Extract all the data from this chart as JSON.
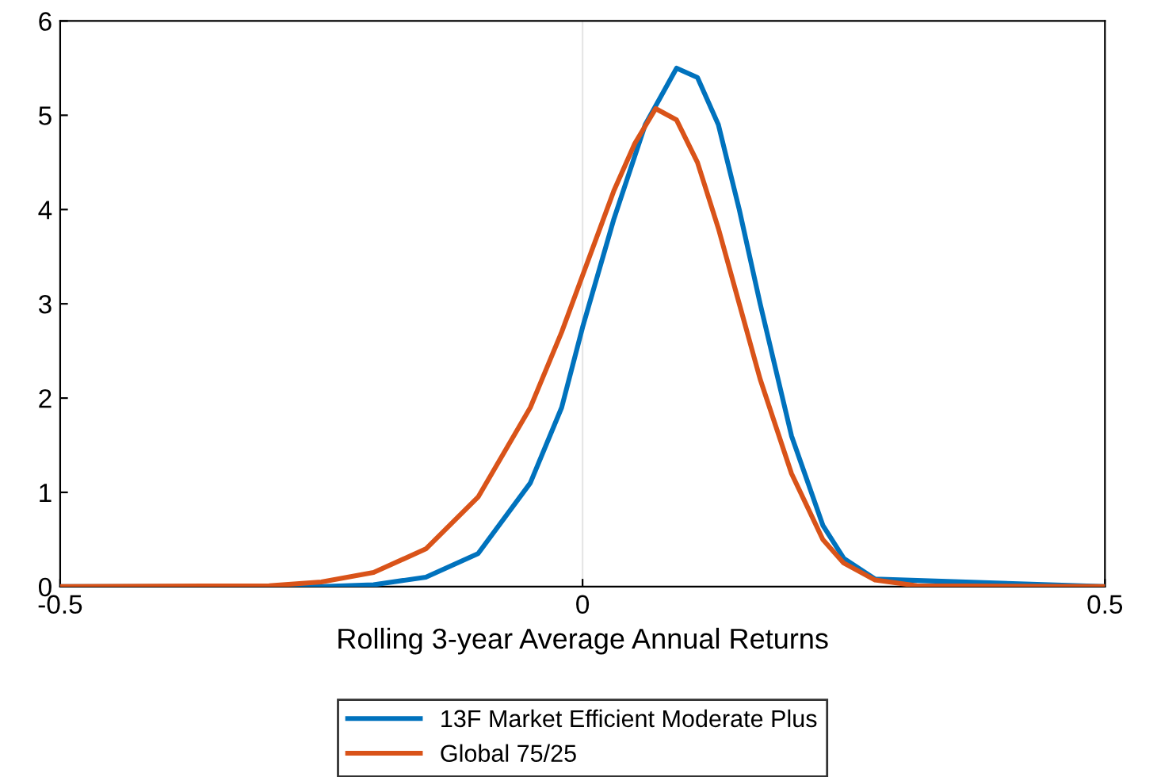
{
  "chart_data": {
    "type": "line",
    "xlabel": "Rolling 3-year Average Annual Returns",
    "xlim": [
      -0.5,
      0.5
    ],
    "xticks": [
      -0.5,
      0,
      0.5
    ],
    "ylim": [
      0,
      6
    ],
    "yticks": [
      0,
      1,
      2,
      3,
      4,
      5,
      6
    ],
    "grid": false,
    "legend": "bottom",
    "marker": "none",
    "line_style": "solid",
    "ref_lines": [
      {
        "axis": "x",
        "value": 0,
        "color": "#e6e6e6"
      }
    ],
    "series": [
      {
        "name": "13F Market Efficient Moderate Plus",
        "color": "#0072bd",
        "x": [
          -0.5,
          -0.25,
          -0.2,
          -0.15,
          -0.1,
          -0.05,
          -0.02,
          0,
          0.03,
          0.06,
          0.09,
          0.11,
          0.13,
          0.15,
          0.17,
          0.2,
          0.23,
          0.25,
          0.28,
          0.5
        ],
        "values": [
          0,
          0,
          0.02,
          0.1,
          0.35,
          1.1,
          1.9,
          2.75,
          3.9,
          4.9,
          5.5,
          5.4,
          4.9,
          4.0,
          3.0,
          1.6,
          0.65,
          0.3,
          0.08,
          0
        ]
      },
      {
        "name": "Global 75/25",
        "color": "#d95319",
        "x": [
          -0.5,
          -0.3,
          -0.25,
          -0.2,
          -0.15,
          -0.1,
          -0.05,
          -0.02,
          0,
          0.03,
          0.05,
          0.07,
          0.09,
          0.11,
          0.13,
          0.15,
          0.17,
          0.2,
          0.23,
          0.25,
          0.28,
          0.32,
          0.5
        ],
        "values": [
          0,
          0.01,
          0.05,
          0.15,
          0.4,
          0.95,
          1.9,
          2.7,
          3.3,
          4.2,
          4.7,
          5.07,
          4.95,
          4.5,
          3.8,
          3.0,
          2.2,
          1.2,
          0.5,
          0.25,
          0.07,
          0.01,
          0
        ]
      }
    ]
  }
}
